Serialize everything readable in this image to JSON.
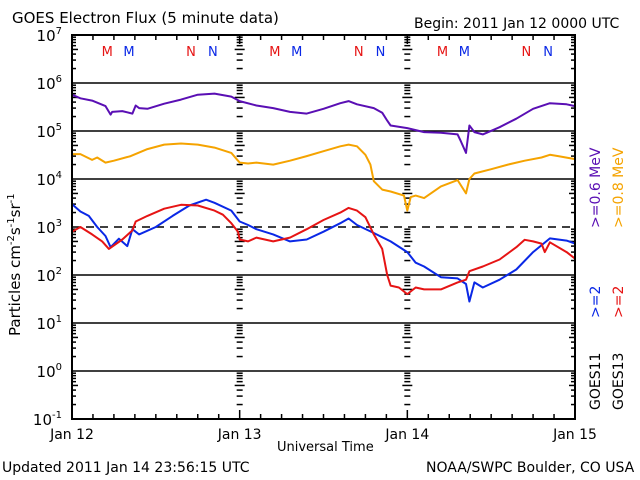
{
  "header": {
    "title": "GOES Electron Flux (5 minute data)",
    "begin": "Begin: 2011 Jan 12 0000 UTC"
  },
  "footer": {
    "updated": "Updated 2011 Jan 14 23:56:15 UTC",
    "credit": "NOAA/SWPC Boulder, CO USA"
  },
  "right_labels": {
    "goes11_energy_hi": ">=0.6 MeV",
    "goes13_energy_hi": ">=0.8 MeV",
    "goes11_energy_lo": ">=2",
    "goes13_energy_lo": ">=2",
    "goes11": "GOES11",
    "goes13": "GOES13"
  },
  "colors": {
    "purple": "#5a0fb4",
    "orange": "#f5a300",
    "blue": "#0a28e6",
    "red": "#e61414",
    "marker_red": "#e61414",
    "marker_blue": "#0a28e6"
  },
  "chart_data": {
    "type": "line",
    "title": "GOES Electron Flux (5 minute data)",
    "xlabel": "Universal Time",
    "ylabel": "Particles cm-2 s-1 sr-1",
    "yscale": "log",
    "ylim_exp": [
      -1,
      7
    ],
    "ytick_labels": [
      {
        "base": "10",
        "exp": "7"
      },
      {
        "base": "10",
        "exp": "6"
      },
      {
        "base": "10",
        "exp": "5"
      },
      {
        "base": "10",
        "exp": "4"
      },
      {
        "base": "10",
        "exp": "3"
      },
      {
        "base": "10",
        "exp": "2"
      },
      {
        "base": "10",
        "exp": "1"
      },
      {
        "base": "10",
        "exp": "0"
      },
      {
        "base": "10",
        "exp": "-1"
      }
    ],
    "xlim_days": [
      0,
      3
    ],
    "xtick_labels": [
      "Jan 12",
      "Jan 13",
      "Jan 14",
      "Jan 15"
    ],
    "threshold_line": 1000,
    "solid_gridlines": [
      1000000,
      100000,
      10000,
      100,
      10,
      1
    ],
    "noon_midnight_markers": [
      {
        "label": "M",
        "color": "red",
        "day": 0.21
      },
      {
        "label": "M",
        "color": "blue",
        "day": 0.34
      },
      {
        "label": "N",
        "color": "red",
        "day": 0.71
      },
      {
        "label": "N",
        "color": "blue",
        "day": 0.84
      },
      {
        "label": "M",
        "color": "red",
        "day": 1.21
      },
      {
        "label": "M",
        "color": "blue",
        "day": 1.34
      },
      {
        "label": "N",
        "color": "red",
        "day": 1.71
      },
      {
        "label": "N",
        "color": "blue",
        "day": 1.84
      },
      {
        "label": "M",
        "color": "red",
        "day": 2.21
      },
      {
        "label": "M",
        "color": "blue",
        "day": 2.34
      },
      {
        "label": "N",
        "color": "red",
        "day": 2.71
      },
      {
        "label": "N",
        "color": "blue",
        "day": 2.84
      }
    ],
    "series": [
      {
        "name": "GOES11 >=0.6 MeV",
        "color": "purple",
        "x": [
          0,
          0.05,
          0.12,
          0.2,
          0.23,
          0.24,
          0.3,
          0.36,
          0.38,
          0.4,
          0.45,
          0.55,
          0.65,
          0.75,
          0.85,
          0.95,
          1.0,
          1.1,
          1.2,
          1.3,
          1.4,
          1.5,
          1.6,
          1.65,
          1.7,
          1.8,
          1.85,
          1.88,
          1.9,
          2.0,
          2.1,
          2.2,
          2.3,
          2.32,
          2.35,
          2.37,
          2.4,
          2.45,
          2.55,
          2.65,
          2.75,
          2.85,
          2.95,
          3.0
        ],
        "y": [
          570000,
          480000,
          430000,
          330000,
          220000,
          250000,
          260000,
          230000,
          340000,
          300000,
          290000,
          370000,
          450000,
          570000,
          600000,
          520000,
          420000,
          340000,
          300000,
          250000,
          230000,
          290000,
          380000,
          420000,
          360000,
          300000,
          240000,
          165000,
          130000,
          115000,
          95000,
          92000,
          85000,
          60000,
          35000,
          130000,
          95000,
          85000,
          120000,
          180000,
          290000,
          380000,
          360000,
          330000
        ]
      },
      {
        "name": "GOES13 >=0.8 MeV",
        "color": "orange",
        "x": [
          0,
          0.05,
          0.12,
          0.15,
          0.2,
          0.25,
          0.35,
          0.45,
          0.55,
          0.65,
          0.75,
          0.85,
          0.95,
          0.99,
          1.0,
          1.05,
          1.1,
          1.2,
          1.3,
          1.4,
          1.5,
          1.6,
          1.65,
          1.7,
          1.75,
          1.78,
          1.8,
          1.85,
          1.9,
          1.98,
          2.0,
          2.02,
          2.05,
          2.1,
          2.2,
          2.3,
          2.35,
          2.37,
          2.4,
          2.5,
          2.6,
          2.7,
          2.8,
          2.85,
          2.9,
          3.0
        ],
        "y": [
          33000,
          33000,
          25000,
          28000,
          22000,
          24000,
          30000,
          42000,
          52000,
          55000,
          52000,
          45000,
          35000,
          24000,
          22000,
          21000,
          22000,
          20000,
          24000,
          30000,
          38000,
          48000,
          52000,
          48000,
          32000,
          20000,
          9000,
          6000,
          5500,
          4500,
          2200,
          4200,
          4500,
          4000,
          7000,
          9500,
          5000,
          10000,
          13000,
          16000,
          20000,
          24000,
          28000,
          32000,
          30000,
          26000
        ]
      },
      {
        "name": "GOES11 >=2 MeV",
        "color": "blue",
        "x": [
          0,
          0.05,
          0.1,
          0.15,
          0.2,
          0.23,
          0.28,
          0.33,
          0.36,
          0.4,
          0.5,
          0.6,
          0.7,
          0.8,
          0.85,
          0.95,
          1.0,
          1.05,
          1.1,
          1.2,
          1.3,
          1.4,
          1.5,
          1.6,
          1.65,
          1.7,
          1.8,
          1.9,
          2.0,
          2.05,
          2.1,
          2.2,
          2.3,
          2.35,
          2.37,
          2.4,
          2.45,
          2.55,
          2.65,
          2.75,
          2.85,
          2.95,
          3.0
        ],
        "y": [
          3000,
          2100,
          1700,
          1000,
          650,
          380,
          570,
          400,
          900,
          700,
          1000,
          1700,
          2800,
          3700,
          3200,
          2200,
          1300,
          1100,
          900,
          700,
          500,
          550,
          800,
          1200,
          1500,
          1100,
          750,
          500,
          300,
          180,
          150,
          90,
          85,
          65,
          28,
          70,
          55,
          80,
          130,
          300,
          580,
          520,
          450
        ]
      },
      {
        "name": "GOES13 >=2 MeV",
        "color": "red",
        "x": [
          0,
          0.05,
          0.12,
          0.18,
          0.22,
          0.3,
          0.36,
          0.38,
          0.45,
          0.55,
          0.65,
          0.75,
          0.85,
          0.9,
          0.95,
          0.99,
          1.0,
          1.05,
          1.1,
          1.2,
          1.3,
          1.4,
          1.5,
          1.6,
          1.65,
          1.7,
          1.75,
          1.8,
          1.85,
          1.88,
          1.9,
          1.95,
          2.0,
          2.05,
          2.1,
          2.2,
          2.3,
          2.35,
          2.37,
          2.45,
          2.55,
          2.65,
          2.7,
          2.75,
          2.8,
          2.82,
          2.85,
          2.95,
          3.0
        ],
        "y": [
          800,
          1000,
          700,
          500,
          350,
          550,
          850,
          1300,
          1700,
          2400,
          2900,
          2800,
          2200,
          1800,
          1200,
          800,
          550,
          500,
          600,
          500,
          600,
          900,
          1400,
          2000,
          2500,
          2200,
          1600,
          700,
          350,
          100,
          60,
          55,
          40,
          55,
          50,
          50,
          70,
          80,
          120,
          150,
          210,
          380,
          540,
          500,
          450,
          300,
          480,
          300,
          220
        ]
      }
    ]
  }
}
